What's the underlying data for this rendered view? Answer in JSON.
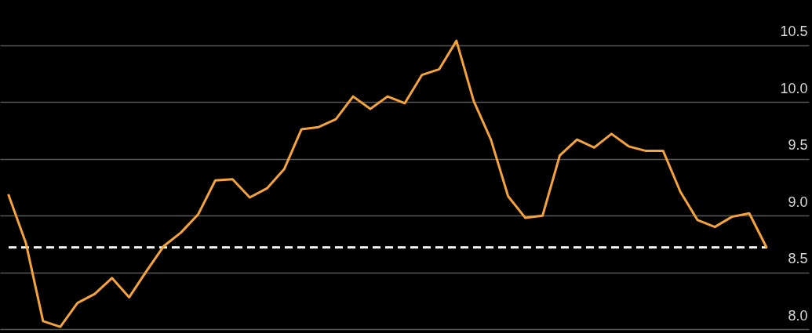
{
  "chart_data": {
    "type": "line",
    "categories": [
      null,
      null,
      null,
      null,
      null,
      null,
      null,
      null,
      null,
      null,
      null,
      null,
      null,
      null,
      null,
      null,
      null,
      null,
      null,
      null,
      null,
      null,
      null,
      null,
      null,
      null,
      null,
      null,
      null,
      null,
      null,
      null,
      null,
      null,
      null,
      null,
      null,
      null,
      null,
      null,
      null,
      null,
      null,
      null,
      null
    ],
    "series": [
      {
        "color": "#f5a33b",
        "values": [
          9.18,
          8.76,
          8.07,
          8.02,
          8.23,
          8.31,
          8.45,
          8.28,
          8.51,
          8.73,
          8.85,
          9.01,
          9.31,
          9.32,
          9.16,
          9.24,
          9.41,
          9.76,
          9.78,
          9.85,
          10.05,
          9.94,
          10.05,
          9.99,
          10.24,
          10.29,
          10.54,
          10.01,
          9.67,
          9.17,
          8.98,
          9.0,
          9.53,
          9.67,
          9.6,
          9.72,
          9.61,
          9.57,
          9.57,
          9.21,
          8.96,
          8.9,
          8.99,
          9.02,
          8.72
        ]
      }
    ],
    "ylim": [
      8.0,
      10.9
    ],
    "yticks": [
      {
        "value": 8,
        "label": "8.0"
      },
      8.5,
      {
        "value": 9,
        "label": "9.0"
      },
      9.5,
      {
        "value": 10,
        "label": "10.0"
      },
      10.5
    ],
    "grid": "y",
    "ref_lines": [
      {
        "axis": "y",
        "value": 8.72,
        "color": "#ffffff",
        "line_style": "dashed"
      }
    ]
  }
}
